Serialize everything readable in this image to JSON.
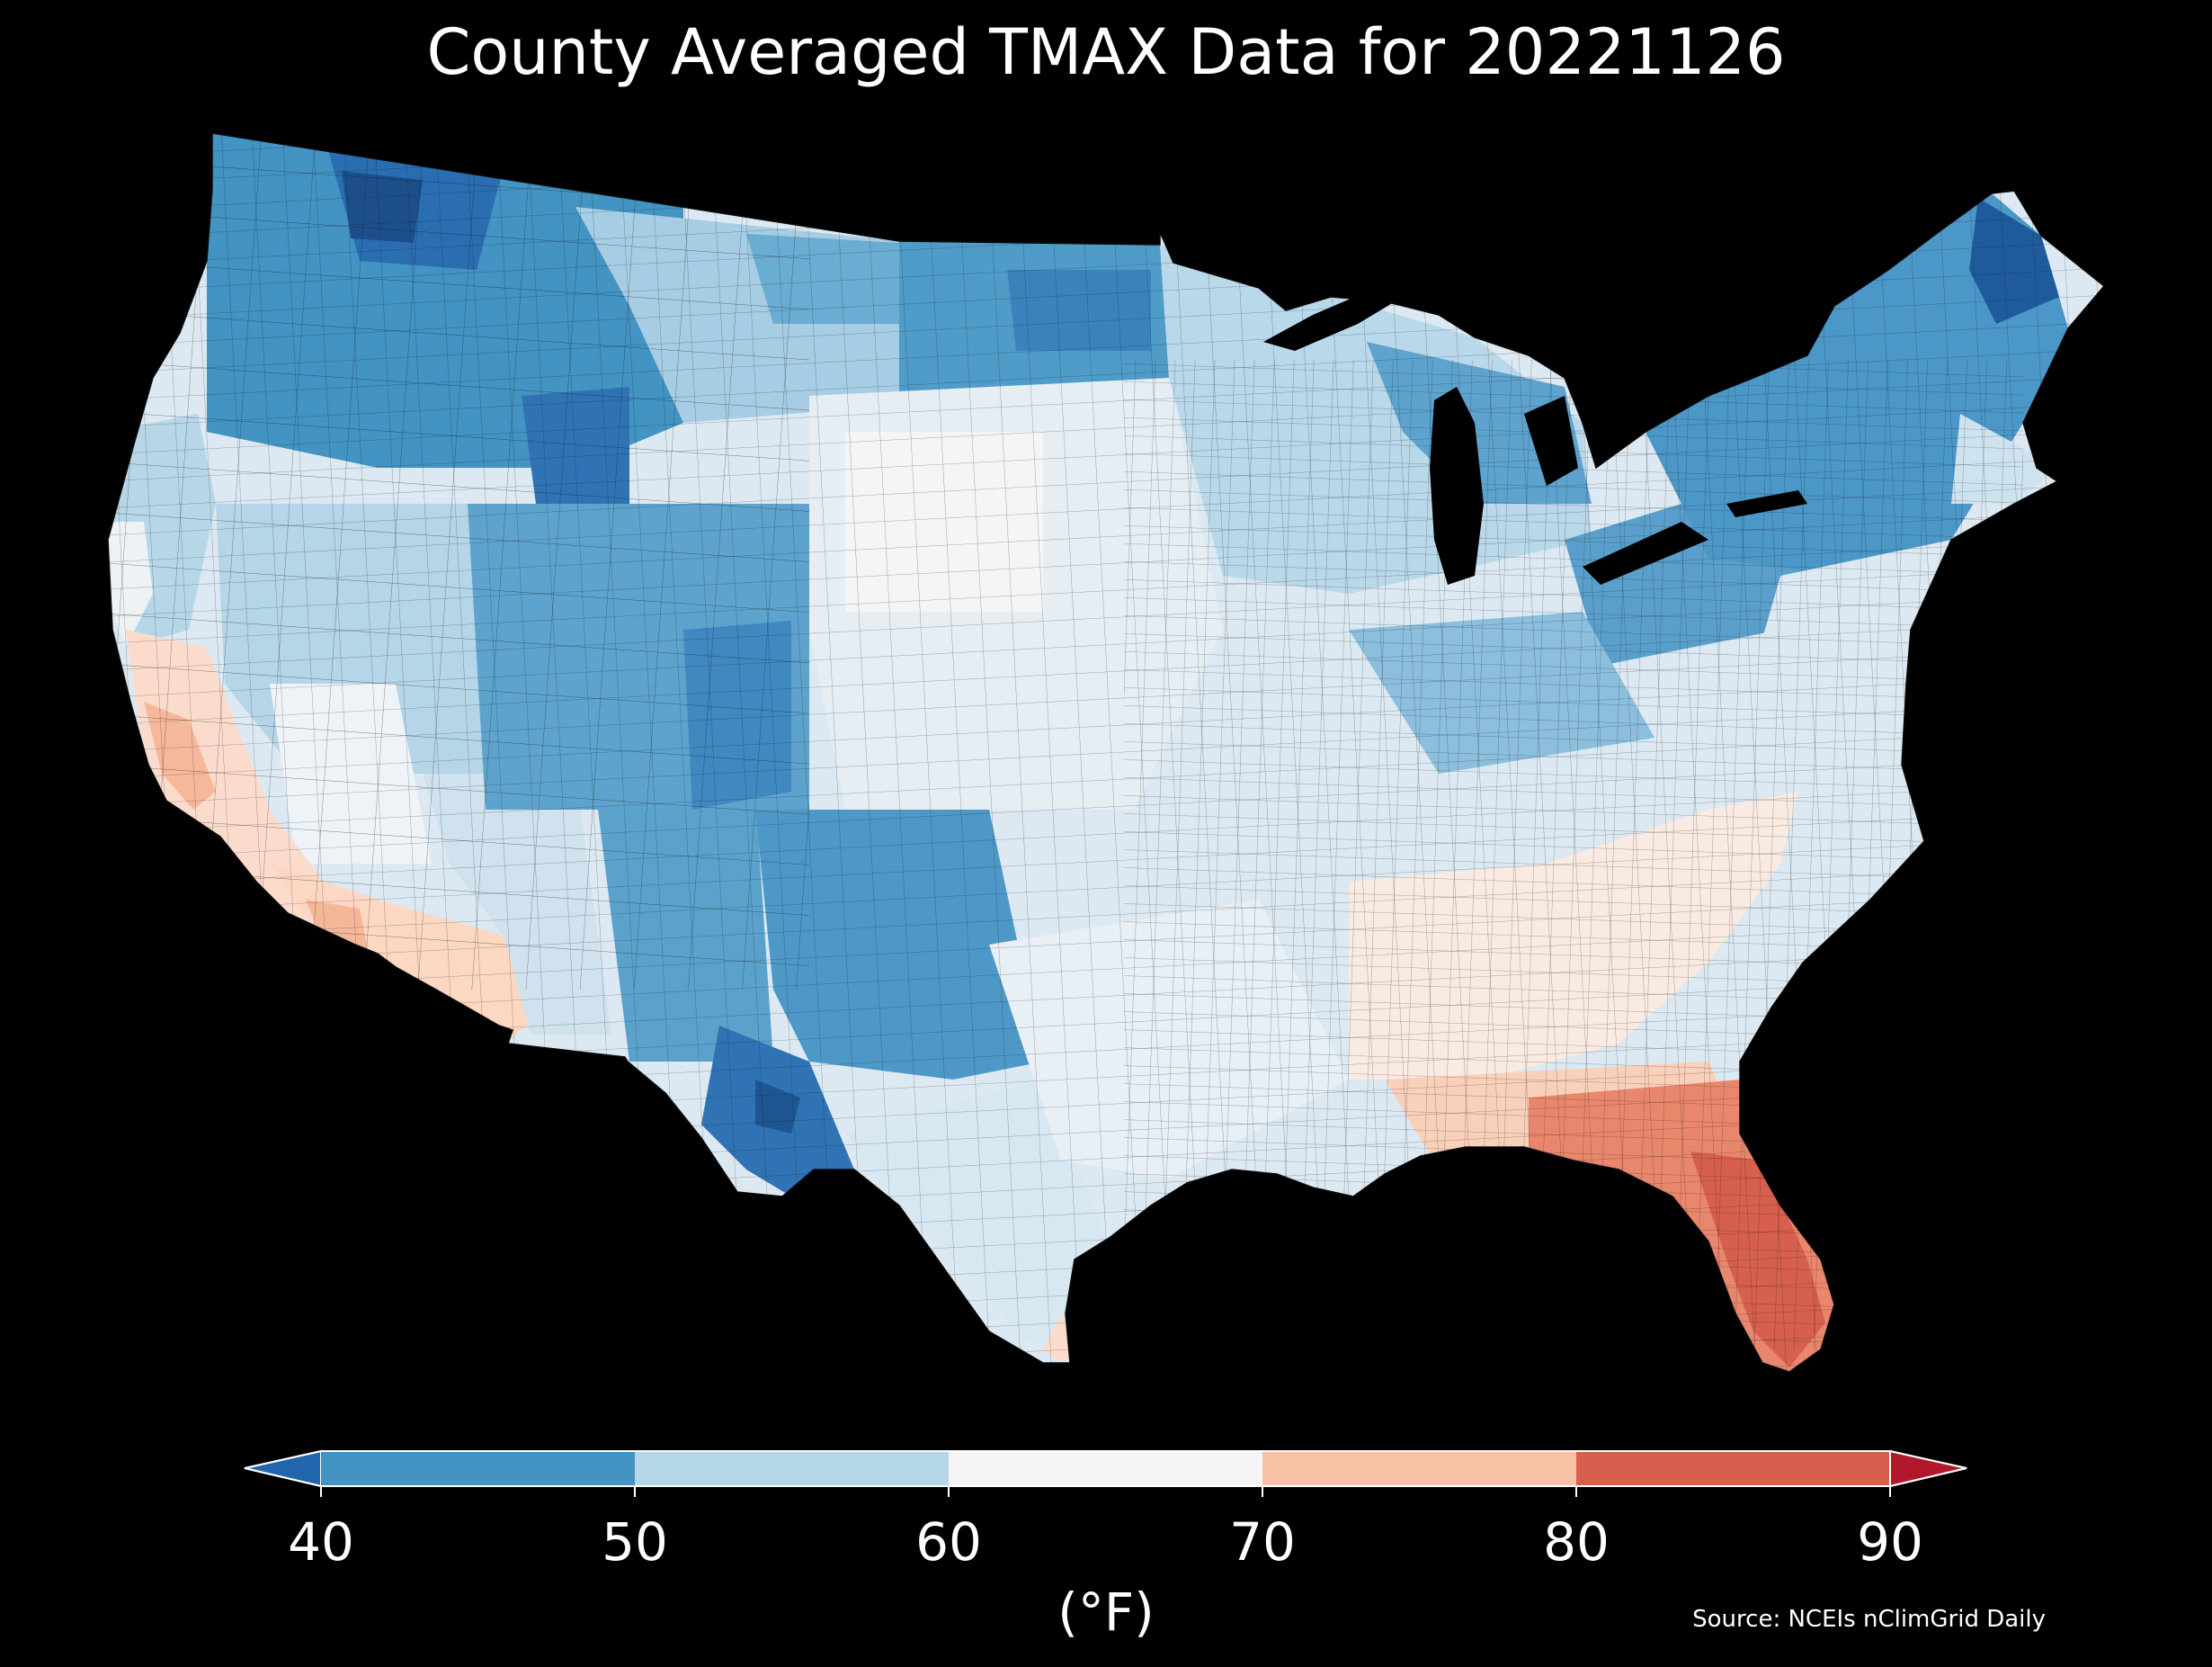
{
  "title": "County Averaged TMAX Data for 20221126",
  "source": "Source: NCEIs nClimGrid Daily",
  "colorbar": {
    "unit_label": "(°F)",
    "ticks": [
      "40",
      "50",
      "60",
      "70",
      "80",
      "90"
    ],
    "extend": "both",
    "bins": [
      {
        "range": [
          40,
          50
        ],
        "color": "#4393c3"
      },
      {
        "range": [
          50,
          60
        ],
        "color": "#b4d6e8"
      },
      {
        "range": [
          60,
          70
        ],
        "color": "#f5f5f5"
      },
      {
        "range": [
          70,
          80
        ],
        "color": "#f8c2a6"
      },
      {
        "range": [
          80,
          90
        ],
        "color": "#d6604d"
      }
    ],
    "under_color": "#2166ac",
    "over_color": "#b2182b"
  },
  "map": {
    "region": "Contiguous United States",
    "background": "#000000",
    "water_color": "#000000",
    "colormap": "RdBu_r"
  }
}
